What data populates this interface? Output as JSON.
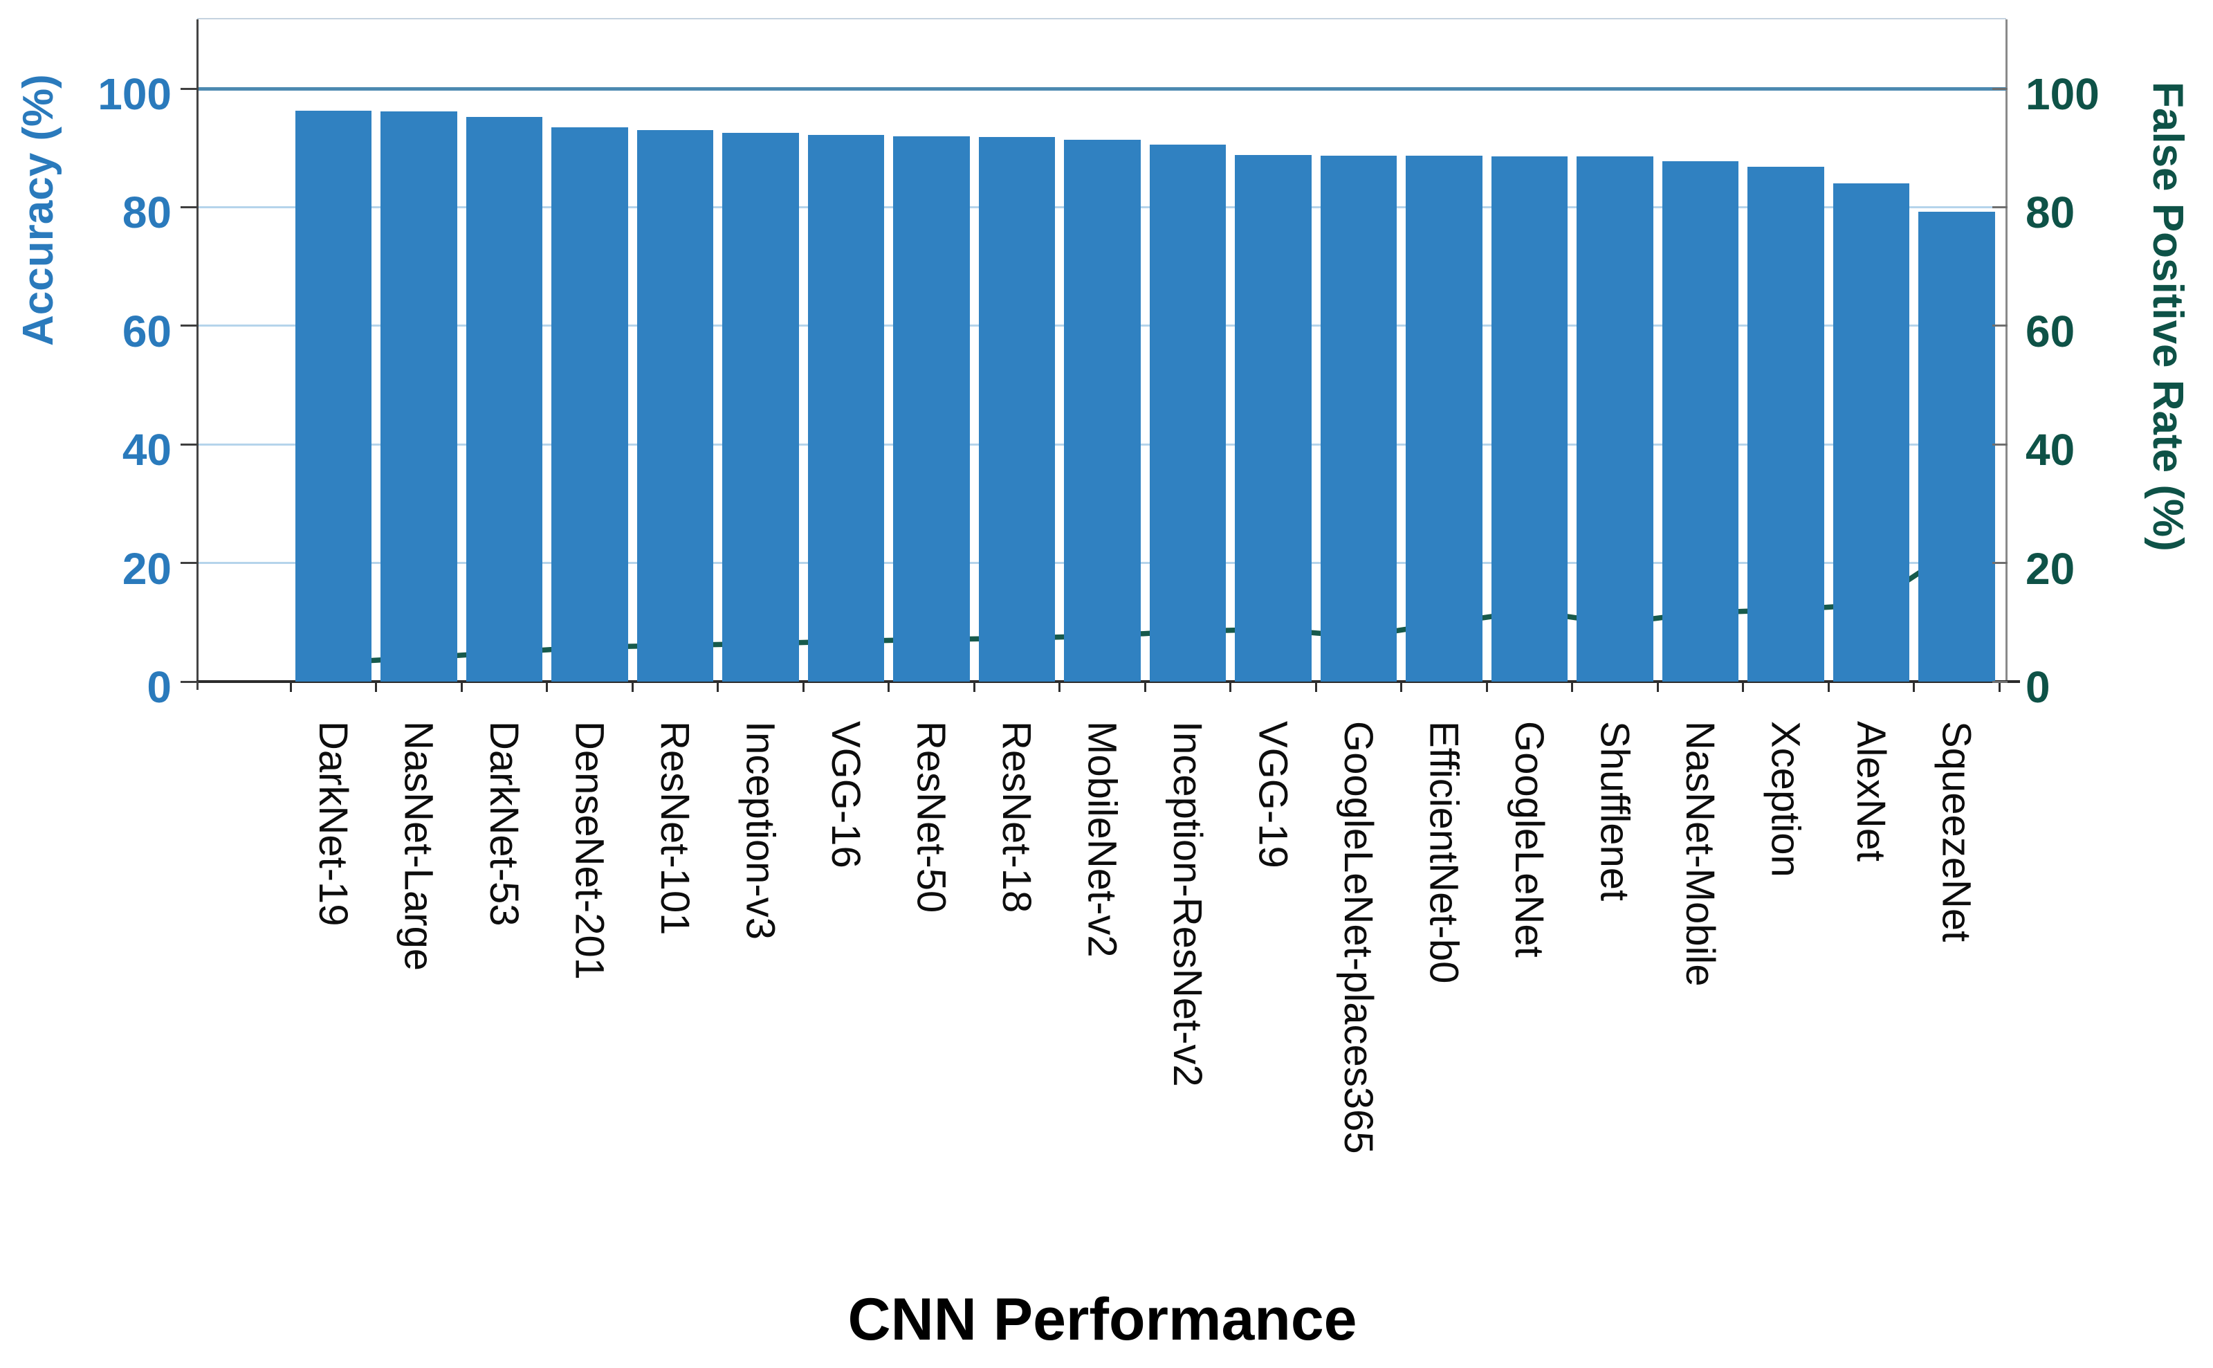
{
  "chart_data": {
    "type": "combo-bar-line",
    "title": "CNN Performance",
    "categories": [
      "DarkNet-19",
      "NasNet-Large",
      "DarkNet-53",
      "DenseNet-201",
      "ResNet-101",
      "Inception-v3",
      "VGG-16",
      "ResNet-50",
      "ResNet-18",
      "MobileNet-v2",
      "Inception-ResNet-v2",
      "VGG-19",
      "GoogleLeNet-places365",
      "EfficientNet-b0",
      "GoogleLeNet",
      "Shufflenet",
      "NasNet-Mobile",
      "Xception",
      "AlexNet",
      "SqueezeNet"
    ],
    "series": [
      {
        "name": "Accuracy (%)",
        "type": "bar",
        "yaxis": "left",
        "color": "#3081c1",
        "values": [
          96.3,
          96.2,
          95.2,
          93.5,
          93.0,
          92.5,
          92.2,
          92.0,
          91.8,
          91.4,
          90.6,
          88.8,
          88.7,
          88.7,
          88.6,
          88.6,
          87.7,
          86.8,
          84.0,
          79.2
        ]
      },
      {
        "name": "False Positive Rate (%)",
        "type": "line",
        "yaxis": "right",
        "color": "#175a4c",
        "values": [
          3.2,
          4.0,
          4.9,
          5.8,
          6.1,
          6.4,
          6.8,
          7.1,
          7.3,
          7.7,
          8.5,
          8.8,
          7.6,
          9.8,
          11.9,
          9.8,
          11.6,
          12.1,
          13.0,
          22.5
        ]
      }
    ],
    "left_axis": {
      "label": "Accuracy (%)",
      "ticks": [
        0,
        20,
        40,
        60,
        80,
        100
      ],
      "range": [
        0,
        100
      ],
      "color": "#2a7abc"
    },
    "right_axis": {
      "label": "False Positive Rate (%)",
      "ticks": [
        0,
        20,
        40,
        60,
        80,
        100
      ],
      "range": [
        0,
        100
      ],
      "color": "#0e5247"
    },
    "x_axis": {
      "label": "CNN Performance"
    },
    "grid": {
      "minor_color": "#b5d4eb",
      "major_value": 100,
      "major_color": "#4c89b0",
      "legend": "none"
    }
  }
}
